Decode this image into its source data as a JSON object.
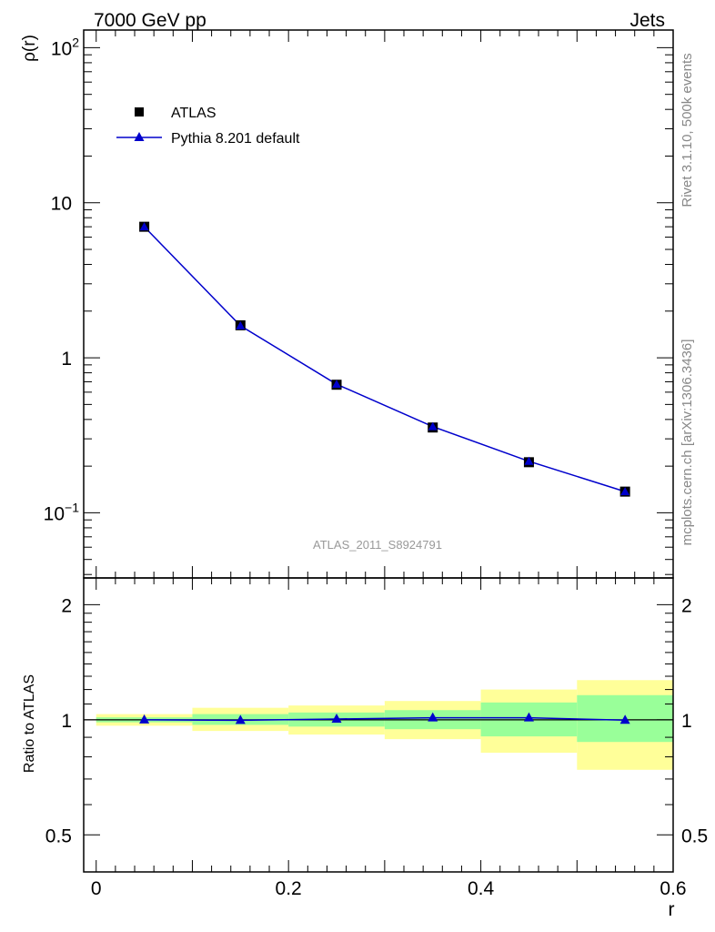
{
  "header": {
    "left": "7000 GeV pp",
    "right": "Jets"
  },
  "side_labels": {
    "rivet": "Rivet 3.1.10,  500k events",
    "mcplots": "mcplots.cern.ch [arXiv:1306.3436]"
  },
  "watermark": "ATLAS_2011_S8924791",
  "chart_data": [
    {
      "type": "line",
      "ylabel": "ρ(r)",
      "yscale": "log",
      "ylim": [
        0.038,
        130
      ],
      "xlim": [
        -0.013,
        0.6
      ],
      "x": [
        0.05,
        0.15,
        0.25,
        0.35,
        0.45,
        0.55
      ],
      "y_tick_labels": [
        "10^-1",
        "1",
        "10",
        "10^2"
      ],
      "legend_position": "top-left",
      "series": [
        {
          "name": "ATLAS",
          "marker": "square",
          "color": "#000000",
          "values": [
            7.0,
            1.62,
            0.67,
            0.355,
            0.212,
            0.137
          ]
        },
        {
          "name": "Pythia 8.201 default",
          "marker": "triangle",
          "color": "#0000cc",
          "values": [
            7.0,
            1.61,
            0.675,
            0.36,
            0.215,
            0.137
          ]
        }
      ]
    },
    {
      "type": "line",
      "ylabel": "Ratio to ATLAS",
      "xlabel": "r",
      "yscale": "log",
      "ylim": [
        0.4,
        2.35
      ],
      "xlim": [
        -0.013,
        0.6
      ],
      "x_tick_labels": [
        "0",
        "0.2",
        "0.4",
        "0.6"
      ],
      "y_tick_labels": [
        "0.5",
        "1",
        "2"
      ],
      "bins": [
        [
          0.0,
          0.1
        ],
        [
          0.1,
          0.2
        ],
        [
          0.2,
          0.3
        ],
        [
          0.3,
          0.4
        ],
        [
          0.4,
          0.5
        ],
        [
          0.5,
          0.6
        ]
      ],
      "band_inner": [
        [
          0.985,
          1.015
        ],
        [
          0.97,
          1.035
        ],
        [
          0.96,
          1.045
        ],
        [
          0.945,
          1.06
        ],
        [
          0.905,
          1.11
        ],
        [
          0.875,
          1.16
        ]
      ],
      "band_outer": [
        [
          0.965,
          1.035
        ],
        [
          0.935,
          1.075
        ],
        [
          0.915,
          1.09
        ],
        [
          0.89,
          1.12
        ],
        [
          0.82,
          1.2
        ],
        [
          0.74,
          1.27
        ]
      ],
      "band_colors": {
        "inner": "#99ff99",
        "outer": "#ffff99"
      },
      "series": [
        {
          "name": "Pythia 8.201 default",
          "color": "#0000cc",
          "values": [
            1.0,
            0.997,
            1.005,
            1.012,
            1.012,
            0.998
          ]
        }
      ]
    }
  ]
}
